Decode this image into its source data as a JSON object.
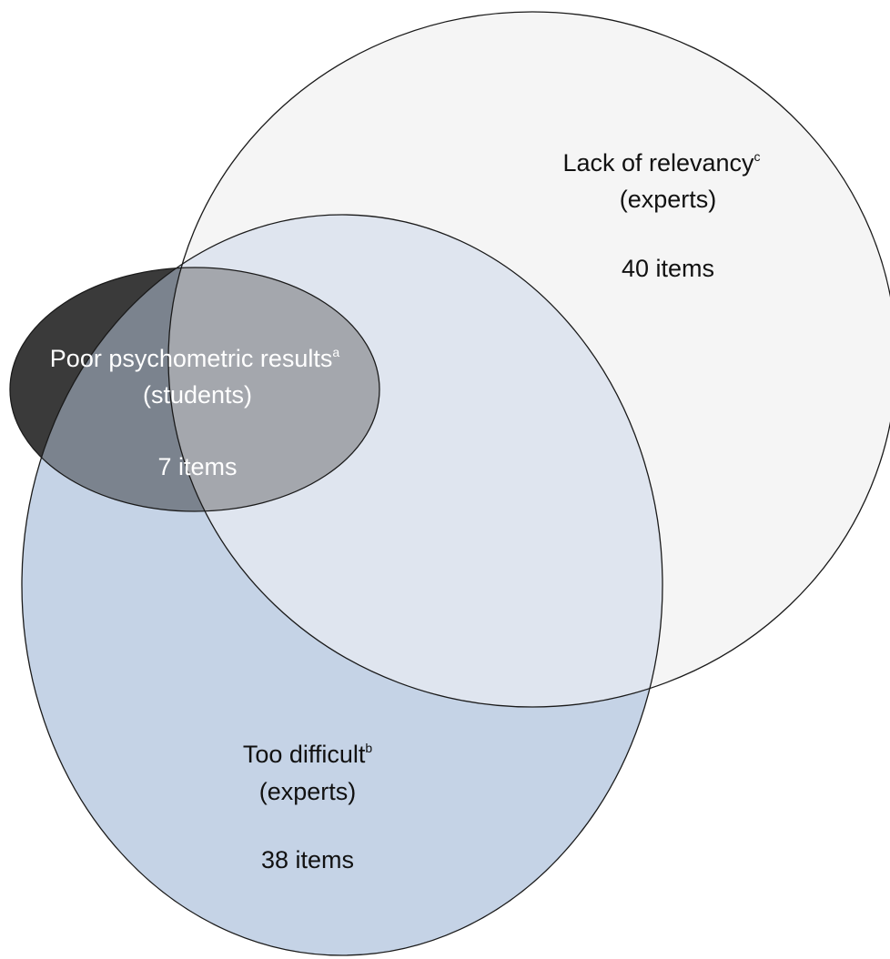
{
  "diagram": {
    "sets": [
      {
        "id": "relevancy",
        "title": "Lack of relevancy",
        "superscript": "c",
        "group": "(experts)",
        "count": "40 items",
        "fill": "#f5f5f5",
        "text_color": "#111111"
      },
      {
        "id": "difficult",
        "title": "Too difficult",
        "superscript": "b",
        "group": "(experts)",
        "count": "38 items",
        "fill": "#c5d3e6",
        "text_color": "#111111"
      },
      {
        "id": "psychometric",
        "title": "Poor psychometric results",
        "superscript": "a",
        "group": "(students)",
        "count": "7 items",
        "fill": "#3a3a3a",
        "text_color": "#ffffff"
      }
    ],
    "overlap_colors": {
      "relevancy_difficult": "#dfe5ef",
      "relevancy_psychometric": "#a6a6a6",
      "difficult_psychometric": "#7b838e",
      "all_three": "#a4a7ad"
    },
    "outline_color": "#1a1a1a"
  }
}
